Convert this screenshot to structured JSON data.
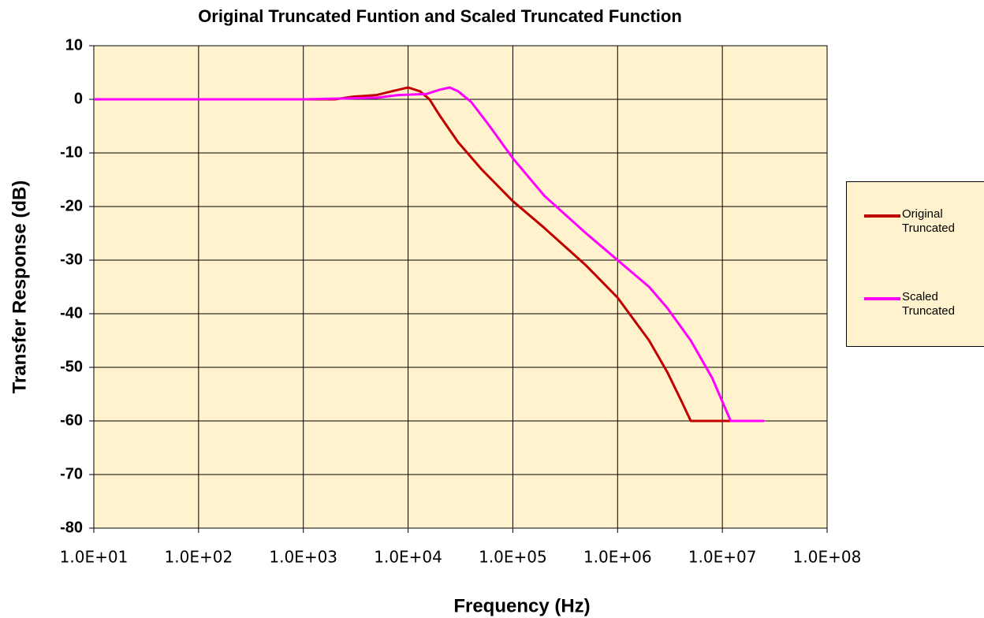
{
  "chart_data": {
    "type": "line",
    "title": "Original Truncated Funtion and Scaled Truncated Function",
    "x_label": "Frequency (Hz)",
    "y_label": "Transfer Response (dB)",
    "xscale": "log",
    "xlim": [
      10,
      100000000
    ],
    "ylim": [
      -80,
      10
    ],
    "xticks": [
      {
        "value": 10,
        "label": "1.0E+01"
      },
      {
        "value": 100,
        "label": "1.0E+02"
      },
      {
        "value": 1000,
        "label": "1.0E+03"
      },
      {
        "value": 10000,
        "label": "1.0E+04"
      },
      {
        "value": 100000,
        "label": "1.0E+05"
      },
      {
        "value": 1000000,
        "label": "1.0E+06"
      },
      {
        "value": 10000000,
        "label": "1.0E+07"
      },
      {
        "value": 100000000,
        "label": "1.0E+08"
      }
    ],
    "yticks": [
      10,
      0,
      -10,
      -20,
      -30,
      -40,
      -50,
      -60,
      -70,
      -80
    ],
    "grid": true,
    "legend": "right",
    "background": "#fff2cc",
    "series": [
      {
        "name": "Original Truncated",
        "color": "#c00000",
        "x": [
          10,
          100,
          1000,
          2000,
          3000,
          5000,
          7000,
          10000,
          13000,
          16000,
          20000,
          30000,
          50000,
          100000,
          200000,
          500000,
          1000000,
          2000000,
          3000000,
          4000000,
          5000000,
          10000000,
          13000000
        ],
        "values": [
          0,
          0,
          0,
          0,
          0.5,
          0.8,
          1.5,
          2.2,
          1.5,
          0,
          -3,
          -8,
          -13,
          -19,
          -24,
          -31,
          -37,
          -45,
          -51,
          -56,
          -60,
          -60,
          -60
        ]
      },
      {
        "name": "Scaled Truncated",
        "color": "#ff00ff",
        "x": [
          10,
          1000,
          5000,
          8000,
          15000,
          20000,
          25000,
          30000,
          40000,
          60000,
          100000,
          200000,
          500000,
          1000000,
          2000000,
          3000000,
          5000000,
          8000000,
          12000000,
          25000000
        ],
        "values": [
          0,
          0,
          0.3,
          0.8,
          1,
          1.8,
          2.2,
          1.5,
          -0.5,
          -5,
          -11,
          -18,
          -25,
          -30,
          -35,
          -39,
          -45,
          -52,
          -60,
          -60
        ]
      }
    ]
  }
}
